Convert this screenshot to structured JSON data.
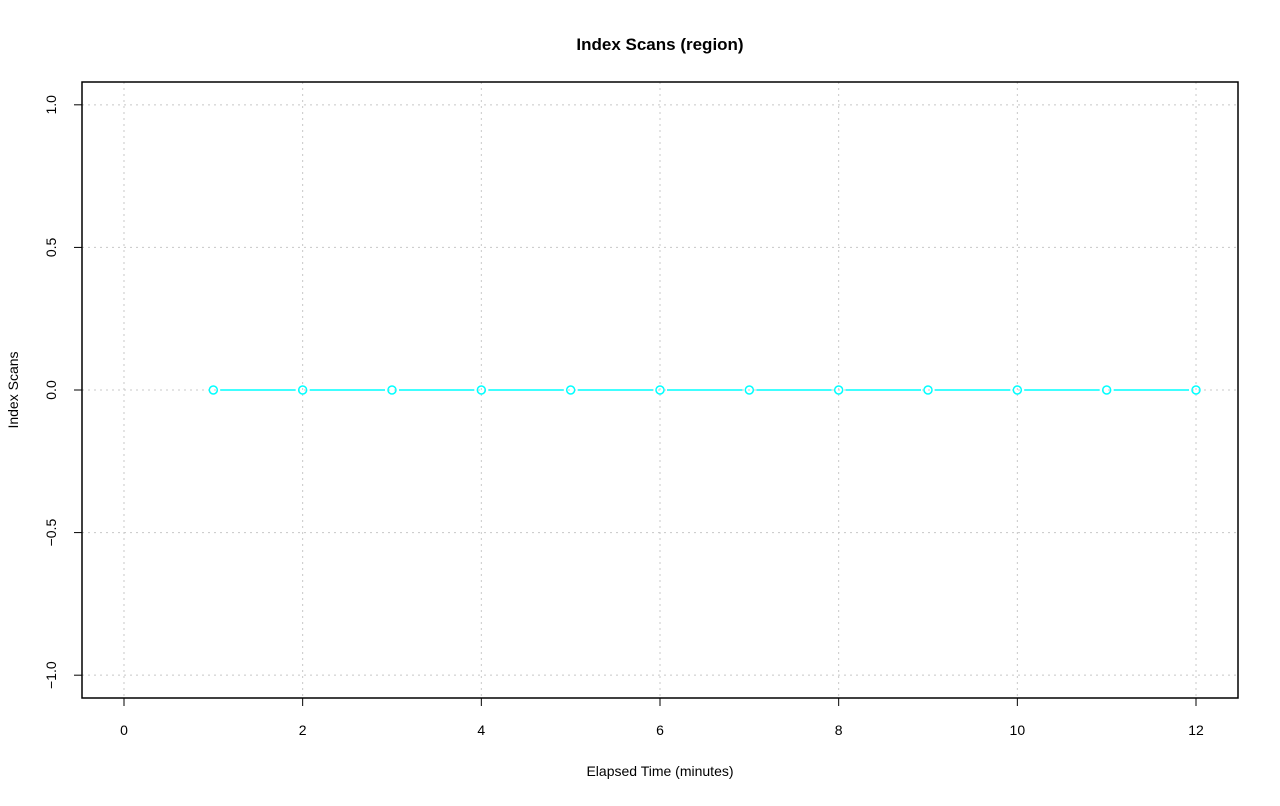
{
  "chart_data": {
    "type": "line",
    "title": "Index Scans (region)",
    "xlabel": "Elapsed Time (minutes)",
    "ylabel": "Index Scans",
    "xlim": [
      -0.47,
      12.47
    ],
    "ylim": [
      -1.08,
      1.08
    ],
    "xticks": [
      0,
      2,
      4,
      6,
      8,
      10,
      12
    ],
    "yticks": [
      -1.0,
      -0.5,
      0.0,
      0.5,
      1.0
    ],
    "xtick_labels": [
      "0",
      "2",
      "4",
      "6",
      "8",
      "10",
      "12"
    ],
    "ytick_labels": [
      "−1.0",
      "−0.5",
      "0.0",
      "0.5",
      "1.0"
    ],
    "grid": true,
    "series": [
      {
        "color": "#00FFFF",
        "marker": "open-circle",
        "x": [
          1,
          2,
          3,
          4,
          5,
          6,
          7,
          8,
          9,
          10,
          11,
          12
        ],
        "y": [
          0,
          0,
          0,
          0,
          0,
          0,
          0,
          0,
          0,
          0,
          0,
          0
        ]
      }
    ]
  }
}
